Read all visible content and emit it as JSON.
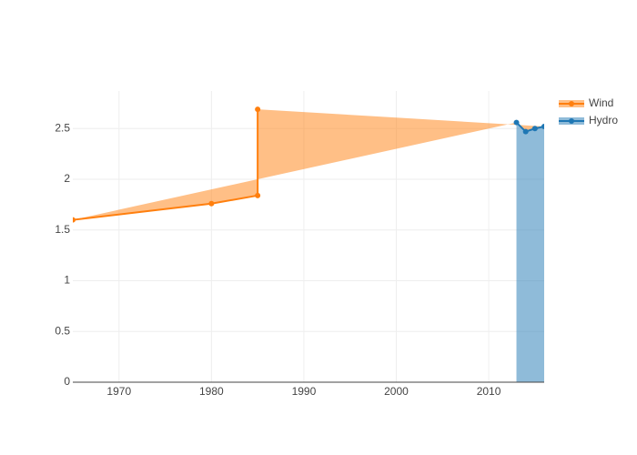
{
  "chart_data": {
    "type": "line",
    "series": [
      {
        "name": "Wind",
        "color": "#ff7f0e",
        "fill": "tonext",
        "x": [
          1965,
          1980,
          1985,
          1985
        ],
        "values": [
          1.6,
          1.76,
          1.84,
          2.69
        ]
      },
      {
        "name": "Hydro",
        "color": "#1f77b4",
        "fill": "tozeroy",
        "x": [
          2013,
          2014,
          2015,
          2016
        ],
        "values": [
          2.56,
          2.47,
          2.5,
          2.52
        ]
      }
    ],
    "xlim": [
      1965,
      2016
    ],
    "xticks": [
      1970,
      1980,
      1990,
      2000,
      2010
    ],
    "ylim": [
      0,
      2.87
    ],
    "yticks": [
      0,
      0.5,
      1,
      1.5,
      2,
      2.5
    ],
    "grid": true,
    "legend": "top-right"
  }
}
